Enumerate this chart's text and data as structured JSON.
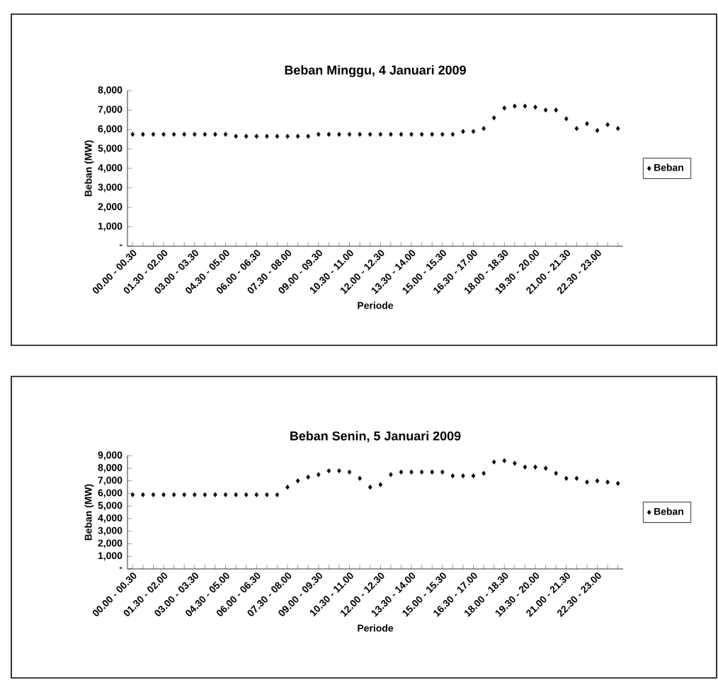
{
  "chart_data": [
    {
      "type": "scatter",
      "title": "Beban Minggu, 4 Januari 2009",
      "xlabel": "Periode",
      "ylabel": "Beban (MW)",
      "marker": "diamond",
      "legend": "right",
      "categories": [
        "00.00 - 00.30",
        null,
        null,
        "01.30 - 02.00",
        null,
        null,
        "03.00 - 03.30",
        null,
        null,
        "04.30 - 05.00",
        null,
        null,
        "06.00 - 06.30",
        null,
        null,
        "07.30 - 08.00",
        null,
        null,
        "09.00 - 09.30",
        null,
        null,
        "10.30 - 11.00",
        null,
        null,
        "12.00 - 12.30",
        null,
        null,
        "13.30 - 14.00",
        null,
        null,
        "15.00 - 15.30",
        null,
        null,
        "16.30 - 17.00",
        null,
        null,
        "18.00 - 18.30",
        null,
        null,
        "19.30 - 20.00",
        null,
        null,
        "21.00 - 21.30",
        null,
        null,
        "22.30 - 23.00",
        null,
        null
      ],
      "ylim": [
        0,
        8000
      ],
      "yticks": [
        {
          "value": 0,
          "label": "-"
        },
        {
          "value": 1000,
          "label": "1,000"
        },
        {
          "value": 2000,
          "label": "2,000"
        },
        {
          "value": 3000,
          "label": "3,000"
        },
        {
          "value": 4000,
          "label": "4,000"
        },
        {
          "value": 5000,
          "label": "5,000"
        },
        {
          "value": 6000,
          "label": "6,000"
        },
        {
          "value": 7000,
          "label": "7,000"
        },
        {
          "value": 8000,
          "label": "8,000"
        }
      ],
      "series": [
        {
          "name": "Beban",
          "color": "#000000",
          "values": [
            5750,
            5750,
            5750,
            5750,
            5750,
            5750,
            5750,
            5750,
            5750,
            5750,
            5650,
            5650,
            5650,
            5650,
            5650,
            5650,
            5650,
            5650,
            5750,
            5750,
            5750,
            5750,
            5750,
            5750,
            5750,
            5750,
            5750,
            5750,
            5750,
            5750,
            5750,
            5750,
            5900,
            5900,
            6050,
            6600,
            7100,
            7200,
            7200,
            7150,
            7000,
            7000,
            6550,
            6050,
            6300,
            5950,
            6250,
            6050
          ]
        }
      ]
    },
    {
      "type": "scatter",
      "title": "Beban Senin, 5 Januari 2009",
      "xlabel": "Periode",
      "ylabel": "Beban (MW)",
      "marker": "diamond",
      "legend": "right",
      "categories": [
        "00.00 - 00.30",
        null,
        null,
        "01.30 - 02.00",
        null,
        null,
        "03.00 - 03.30",
        null,
        null,
        "04.30 - 05.00",
        null,
        null,
        "06.00 - 06.30",
        null,
        null,
        "07.30 - 08.00",
        null,
        null,
        "09.00 - 09.30",
        null,
        null,
        "10.30 - 11.00",
        null,
        null,
        "12.00 - 12.30",
        null,
        null,
        "13.30 - 14.00",
        null,
        null,
        "15.00 - 15.30",
        null,
        null,
        "16.30 - 17.00",
        null,
        null,
        "18.00 - 18.30",
        null,
        null,
        "19.30 - 20.00",
        null,
        null,
        "21.00 - 21.30",
        null,
        null,
        "22.30 - 23.00",
        null,
        null
      ],
      "ylim": [
        0,
        9000
      ],
      "yticks": [
        {
          "value": 0,
          "label": "-"
        },
        {
          "value": 1000,
          "label": "1,000"
        },
        {
          "value": 2000,
          "label": "2,000"
        },
        {
          "value": 3000,
          "label": "3,000"
        },
        {
          "value": 4000,
          "label": "4,000"
        },
        {
          "value": 5000,
          "label": "5,000"
        },
        {
          "value": 6000,
          "label": "6,000"
        },
        {
          "value": 7000,
          "label": "7,000"
        },
        {
          "value": 8000,
          "label": "8,000"
        },
        {
          "value": 9000,
          "label": "9,000"
        }
      ],
      "series": [
        {
          "name": "Beban",
          "color": "#000000",
          "values": [
            5900,
            5900,
            5900,
            5900,
            5900,
            5900,
            5900,
            5900,
            5900,
            5900,
            5900,
            5900,
            5900,
            5900,
            5900,
            6500,
            7000,
            7300,
            7500,
            7800,
            7800,
            7700,
            7200,
            6500,
            6700,
            7500,
            7700,
            7700,
            7700,
            7700,
            7700,
            7400,
            7400,
            7400,
            7600,
            8500,
            8600,
            8400,
            8100,
            8100,
            8000,
            7600,
            7200,
            7200,
            6900,
            7000,
            6900,
            6800
          ]
        }
      ]
    }
  ]
}
